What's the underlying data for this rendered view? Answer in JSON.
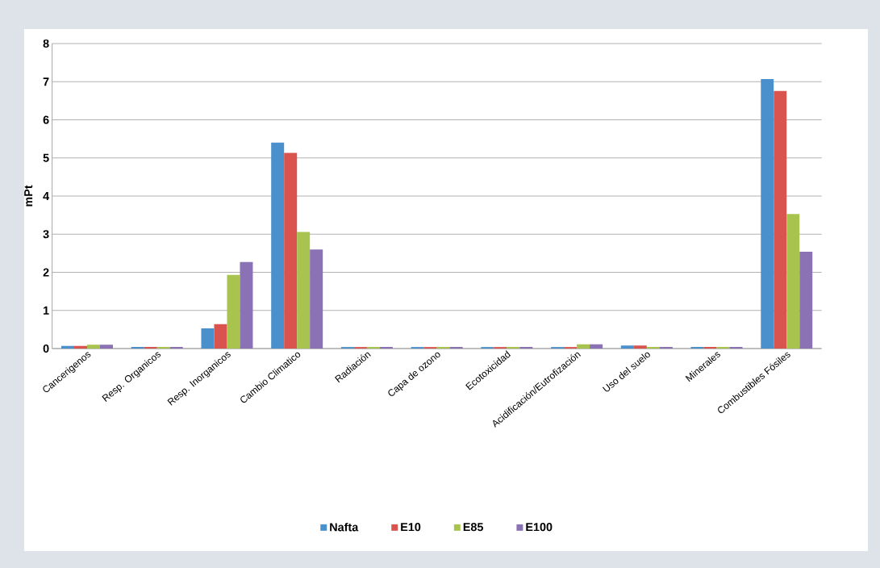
{
  "chart_data": {
    "type": "bar",
    "ylabel": "mPt",
    "categories": [
      "Cancerigenos",
      "Resp. Organicos",
      "Resp. Inorganicos",
      "Cambio Climatico",
      "Radiación",
      "Capa de ozono",
      "Ecotoxicidad",
      "Acidificación/Eutrofización",
      "Uso del suelo",
      "Minerales",
      "Combustibles Fósiles"
    ],
    "series": [
      {
        "name": "Nafta",
        "color": "#4a90cc",
        "values": [
          0.07,
          0.04,
          0.53,
          5.4,
          0.04,
          0.04,
          0.04,
          0.04,
          0.08,
          0.04,
          7.07
        ]
      },
      {
        "name": "E10",
        "color": "#d9534f",
        "values": [
          0.07,
          0.04,
          0.64,
          5.13,
          0.04,
          0.04,
          0.04,
          0.04,
          0.08,
          0.04,
          6.76
        ]
      },
      {
        "name": "E85",
        "color": "#a8c44e",
        "values": [
          0.1,
          0.04,
          1.93,
          3.06,
          0.04,
          0.04,
          0.04,
          0.11,
          0.04,
          0.04,
          3.53
        ]
      },
      {
        "name": "E100",
        "color": "#8a72b4",
        "values": [
          0.1,
          0.04,
          2.27,
          2.6,
          0.04,
          0.04,
          0.04,
          0.11,
          0.04,
          0.04,
          2.54
        ]
      }
    ],
    "ylim": [
      0,
      8
    ],
    "yticks": [
      0,
      1,
      2,
      3,
      4,
      5,
      6,
      7,
      8
    ],
    "grid": "y",
    "legend": "bottom"
  }
}
